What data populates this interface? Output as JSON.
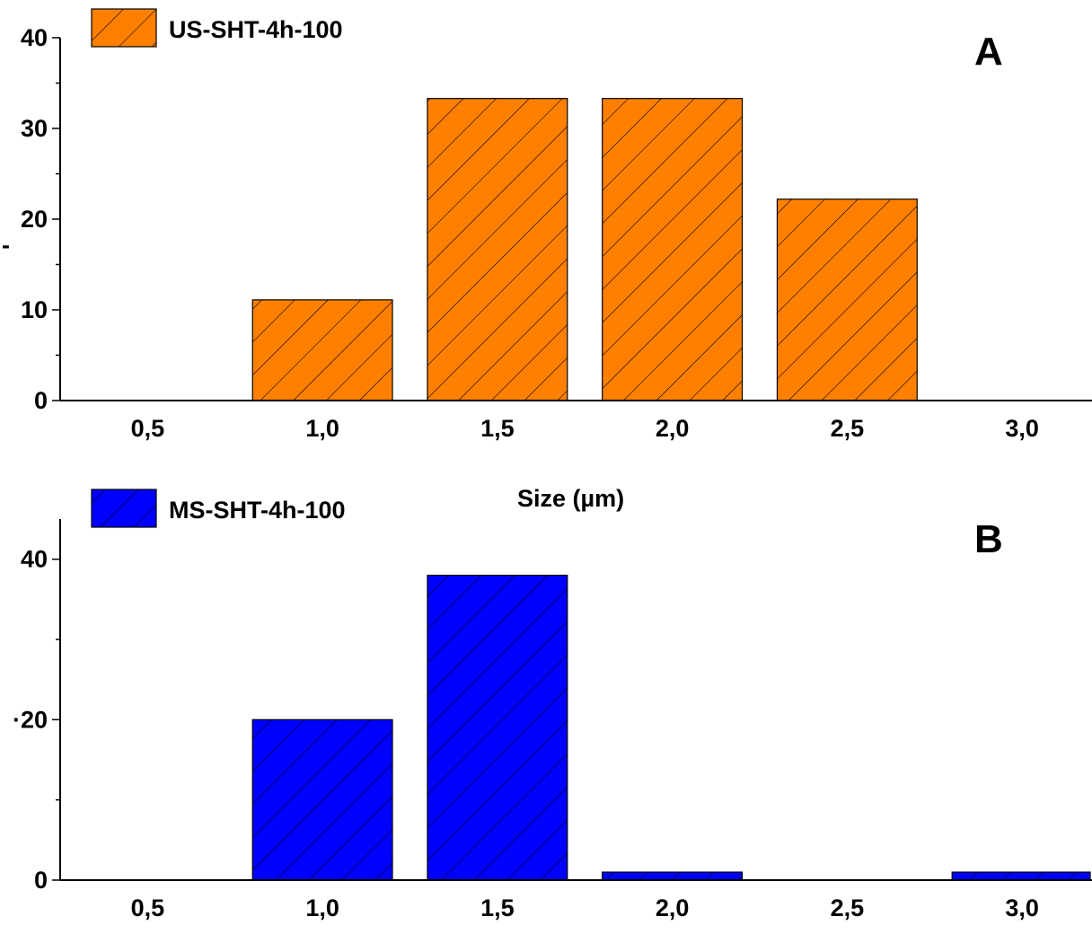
{
  "chart_data": [
    {
      "type": "bar",
      "panel_label": "A",
      "x": [
        0.5,
        1.0,
        1.5,
        2.0,
        2.5,
        3.0
      ],
      "x_tick_labels": [
        "0,5",
        "1,0",
        "1,5",
        "2,0",
        "2,5",
        "3,0"
      ],
      "xlim": [
        0.25,
        3.2
      ],
      "ylim": [
        0,
        40
      ],
      "y_ticks": [
        0,
        10,
        20,
        30,
        40
      ],
      "y_tick_labels": [
        "0",
        "10",
        "20",
        "30",
        "40"
      ],
      "bar_width": 0.4,
      "series": [
        {
          "name": "US-SHT-4h-100",
          "color": "#ff8000",
          "pattern": "diagonal-hatch",
          "values": [
            0,
            11.1,
            33.3,
            33.3,
            22.2,
            0
          ]
        }
      ],
      "legend_position": "top-left",
      "xlabel": "",
      "ylabel": ""
    },
    {
      "type": "bar",
      "panel_label": "B",
      "x": [
        0.5,
        1.0,
        1.5,
        2.0,
        2.5,
        3.0
      ],
      "x_tick_labels": [
        "0,5",
        "1,0",
        "1,5",
        "2,0",
        "2,5",
        "3,0"
      ],
      "xlim": [
        0.25,
        3.2
      ],
      "ylim": [
        0,
        45
      ],
      "y_ticks": [
        0,
        20,
        40
      ],
      "y_tick_labels": [
        "0",
        "·20",
        "40"
      ],
      "bar_width": 0.4,
      "series": [
        {
          "name": "MS-SHT-4h-100",
          "color": "#0000ff",
          "pattern": "diagonal-hatch",
          "values": [
            0,
            20,
            38,
            1,
            0,
            1
          ]
        }
      ],
      "legend_position": "top-left",
      "xlabel": "",
      "ylabel": ""
    }
  ],
  "shared_xlabel": "Size (µm)",
  "stray_tick_mark": "-"
}
